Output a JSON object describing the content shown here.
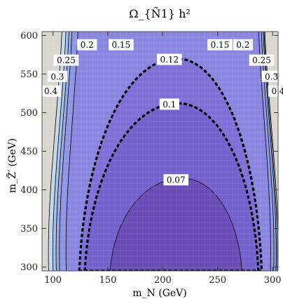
{
  "chart_data": {
    "type": "contour",
    "title": "Ω_{Ñ1} h²",
    "xlabel": "m_N (GeV)",
    "ylabel": "m_Z̃′ (GeV)",
    "xlim": [
      90,
      305
    ],
    "ylim": [
      295,
      605
    ],
    "x_ticks": [
      100,
      150,
      200,
      250,
      300
    ],
    "y_ticks": [
      300,
      350,
      400,
      450,
      500,
      550,
      600
    ],
    "grid": false,
    "contours": [
      {
        "level": "0.07",
        "style": "solid",
        "x_range": [
          152,
          272
        ],
        "y_range": [
          295,
          415
        ]
      },
      {
        "level": "0.1",
        "style": "dashed",
        "x_range": [
          129,
          287
        ],
        "y_range": [
          295,
          512
        ]
      },
      {
        "level": "0.12",
        "style": "dashed",
        "x_range": [
          124,
          290
        ],
        "y_range": [
          295,
          570
        ]
      },
      {
        "level": "0.15",
        "style": "solid",
        "x_range": [
          112,
          298
        ],
        "y_range": [
          295,
          605
        ]
      },
      {
        "level": "0.2",
        "style": "solid",
        "x_range": [
          106,
          301
        ],
        "y_range": [
          295,
          605
        ]
      },
      {
        "level": "0.25",
        "style": "solid",
        "x_range": [
          103,
          303
        ],
        "y_range": [
          295,
          605
        ]
      },
      {
        "level": "0.3",
        "style": "solid",
        "x_range": [
          100,
          304
        ],
        "y_range": [
          295,
          605
        ]
      },
      {
        "level": "0.4",
        "style": "solid",
        "x_range": [
          96,
          305
        ],
        "y_range": [
          295,
          605
        ]
      }
    ],
    "colors": {
      "lowest": "#6a4cb6",
      "mid": "#8c7ae0",
      "outer": "#a9c8e4",
      "edge": "#d9d6cf"
    }
  }
}
